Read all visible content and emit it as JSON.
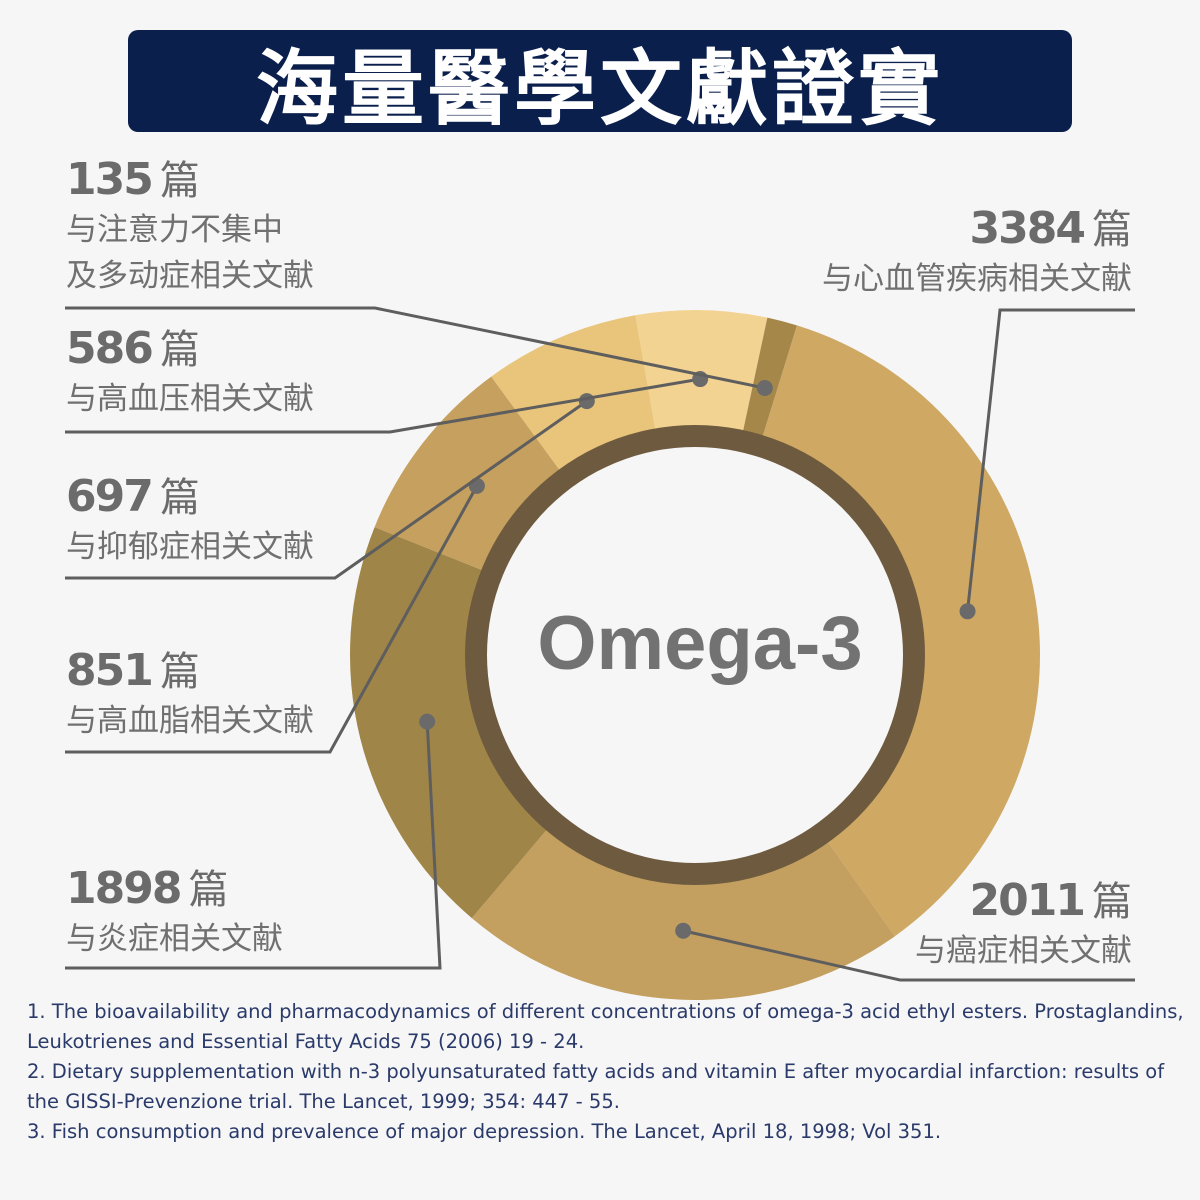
{
  "header": {
    "title": "海量醫學文獻證實"
  },
  "chart_data": {
    "type": "pie",
    "center_label": "Omega-3",
    "unit": "篇",
    "series": [
      {
        "value": 3384,
        "count": "3384",
        "desc_lines": [
          "与心血管疾病相关文献"
        ],
        "color": "#cfa864"
      },
      {
        "value": 2011,
        "count": "2011",
        "desc_lines": [
          "与癌症相关文献"
        ],
        "color": "#c39f60"
      },
      {
        "value": 1898,
        "count": "1898",
        "desc_lines": [
          "与炎症相关文献"
        ],
        "color": "#a08548"
      },
      {
        "value": 851,
        "count": "851",
        "desc_lines": [
          "与高血脂相关文献"
        ],
        "color": "#c5a05e"
      },
      {
        "value": 697,
        "count": "697",
        "desc_lines": [
          "与抑郁症相关文献"
        ],
        "color": "#e9c47b"
      },
      {
        "value": 586,
        "count": "586",
        "desc_lines": [
          "与高血压相关文献"
        ],
        "color": "#f3d392"
      },
      {
        "value": 135,
        "count": "135",
        "desc_lines": [
          "与注意力不集中",
          "及多动症相关文献"
        ],
        "color": "#a6874a"
      }
    ]
  },
  "references": [
    "1. The bioavailability and pharmacodynamics of different concentrations of omega-3 acid ethyl esters. Prostaglandins, Leukotrienes and Essential Fatty Acids 75 (2006) 19 - 24.",
    "2. Dietary supplementation with n-3 polyunsaturated fatty acids and vitamin E after myocardial infarction: results of the GISSI-Prevenzione trial. The Lancet, 1999; 354: 447 - 55.",
    "3. Fish consumption and prevalence of major depression. The Lancet, April 18, 1998; Vol 351."
  ]
}
